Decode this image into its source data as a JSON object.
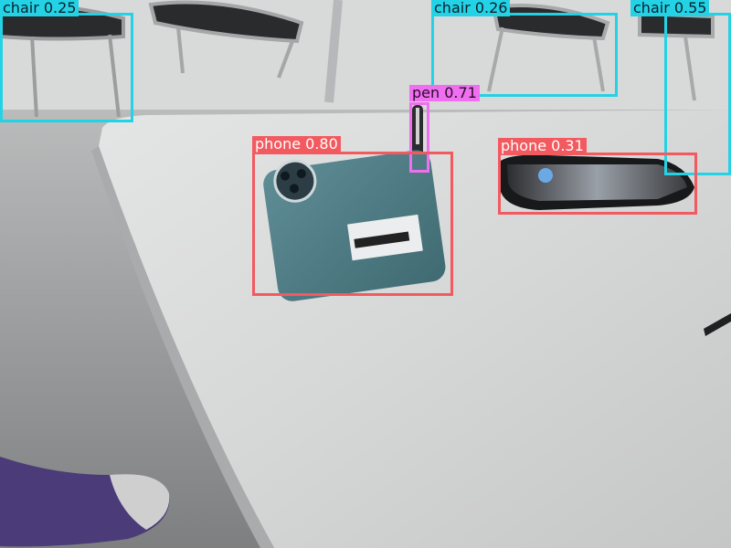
{
  "image": {
    "description_free": true
  },
  "detections": [
    {
      "id": "chair-1",
      "label": "chair 0.25",
      "color": "#24d2e6"
    },
    {
      "id": "chair-2",
      "label": "chair 0.26",
      "color": "#24d2e6"
    },
    {
      "id": "chair-3",
      "label": "chair 0.55",
      "color": "#24d2e6"
    },
    {
      "id": "pen-1",
      "label": "pen 0.71",
      "color": "#ef6ff0"
    },
    {
      "id": "phone-1",
      "label": "phone 0.80",
      "color": "#f25a5f"
    },
    {
      "id": "phone-2",
      "label": "phone 0.31",
      "color": "#f25a5f"
    }
  ]
}
